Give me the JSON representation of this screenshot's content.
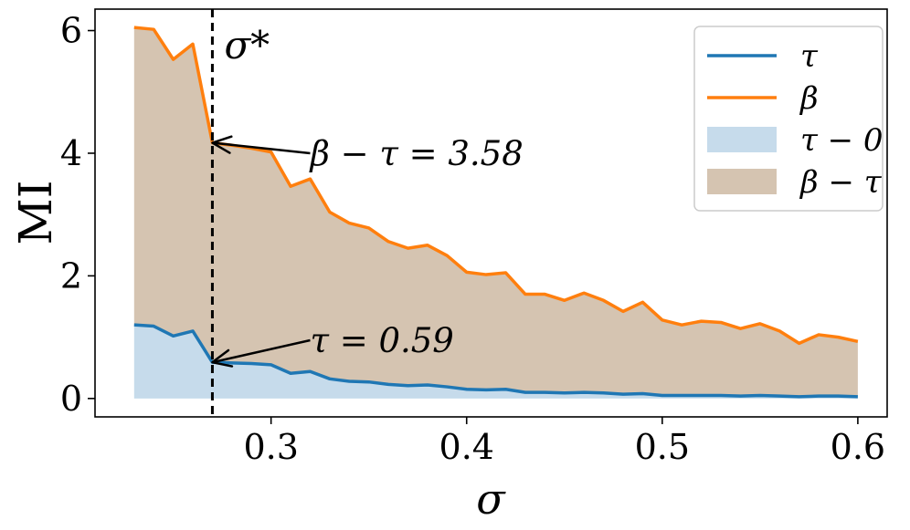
{
  "chart_data": {
    "type": "area",
    "xlabel": "σ",
    "ylabel": "MI",
    "xlim": [
      0.21,
      0.615
    ],
    "ylim": [
      -0.3,
      6.35
    ],
    "xticks": [
      0.3,
      0.4,
      0.5,
      0.6
    ],
    "xtick_labels": [
      "0.3",
      "0.4",
      "0.5",
      "0.6"
    ],
    "yticks": [
      0,
      2,
      4,
      6
    ],
    "ytick_labels": [
      "0",
      "2",
      "4",
      "6"
    ],
    "grid": false,
    "legend_position": "top-right",
    "x": [
      0.23,
      0.24,
      0.25,
      0.26,
      0.27,
      0.28,
      0.29,
      0.3,
      0.31,
      0.32,
      0.33,
      0.34,
      0.35,
      0.36,
      0.37,
      0.38,
      0.39,
      0.4,
      0.41,
      0.42,
      0.43,
      0.44,
      0.45,
      0.46,
      0.47,
      0.48,
      0.49,
      0.5,
      0.51,
      0.52,
      0.53,
      0.54,
      0.55,
      0.56,
      0.57,
      0.58,
      0.59,
      0.6
    ],
    "series": [
      {
        "name": "τ",
        "color": "#1f77b4",
        "values": [
          1.2,
          1.18,
          1.02,
          1.1,
          0.59,
          0.58,
          0.57,
          0.55,
          0.41,
          0.44,
          0.32,
          0.28,
          0.27,
          0.23,
          0.21,
          0.22,
          0.19,
          0.15,
          0.14,
          0.15,
          0.1,
          0.1,
          0.09,
          0.1,
          0.09,
          0.07,
          0.08,
          0.05,
          0.05,
          0.05,
          0.05,
          0.04,
          0.05,
          0.04,
          0.03,
          0.04,
          0.04,
          0.03
        ]
      },
      {
        "name": "β",
        "color": "#ff7f0e",
        "values": [
          6.05,
          6.02,
          5.53,
          5.78,
          4.17,
          4.13,
          4.08,
          4.02,
          3.46,
          3.58,
          3.04,
          2.86,
          2.78,
          2.56,
          2.45,
          2.5,
          2.33,
          2.06,
          2.02,
          2.05,
          1.7,
          1.7,
          1.6,
          1.72,
          1.6,
          1.42,
          1.57,
          1.28,
          1.2,
          1.26,
          1.24,
          1.14,
          1.22,
          1.1,
          0.9,
          1.04,
          1.0,
          0.93
        ]
      }
    ],
    "fills": [
      {
        "name": "τ−0",
        "color": "#c6dbeb",
        "lower": "zero",
        "upper": "τ"
      },
      {
        "name": "β−τ",
        "color": "#d5c4b1",
        "lower": "τ",
        "upper": "β"
      }
    ],
    "vline": {
      "x": 0.27,
      "label": "σ*",
      "style": "dashed",
      "color": "#000000"
    },
    "annotations": [
      {
        "text": "β − τ = 3.58",
        "point_x": 0.27,
        "point_y": 4.17,
        "text_x": 0.32,
        "text_y": 4.0
      },
      {
        "text": "τ = 0.59",
        "point_x": 0.27,
        "point_y": 0.59,
        "text_x": 0.32,
        "text_y": 0.95
      }
    ],
    "legend": [
      {
        "label": "τ",
        "kind": "line",
        "color": "#1f77b4"
      },
      {
        "label": "β",
        "kind": "line",
        "color": "#ff7f0e"
      },
      {
        "label": "τ − 0",
        "kind": "patch",
        "color": "#c6dbeb"
      },
      {
        "label": "β − τ",
        "kind": "patch",
        "color": "#d5c4b1"
      }
    ]
  }
}
